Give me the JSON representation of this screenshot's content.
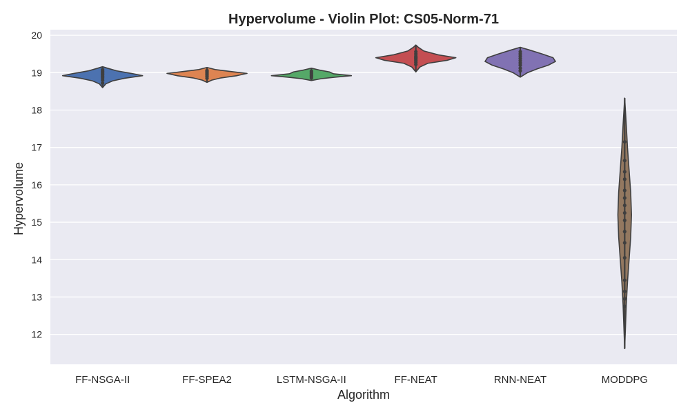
{
  "chart_data": {
    "type": "violin",
    "title": "Hypervolume - Violin Plot: CS05-Norm-71",
    "xlabel": "Algorithm",
    "ylabel": "Hypervolume",
    "ylim": [
      11.2,
      20.15
    ],
    "yticks": [
      12,
      13,
      14,
      15,
      16,
      17,
      18,
      19,
      20
    ],
    "grid": true,
    "categories": [
      "FF-NSGA-II",
      "FF-SPEA2",
      "LSTM-NSGA-II",
      "FF-NEAT",
      "RNN-NEAT",
      "MODDPG"
    ],
    "colors": [
      "#4c72b0",
      "#dd8452",
      "#55a868",
      "#c44e52",
      "#8172b3",
      "#937860"
    ],
    "background": "#eaeaf2",
    "series": [
      {
        "category": "FF-NSGA-II",
        "min": 18.6,
        "max": 19.16,
        "profile": [
          [
            18.6,
            0.0
          ],
          [
            18.7,
            0.08
          ],
          [
            18.78,
            0.25
          ],
          [
            18.85,
            0.55
          ],
          [
            18.92,
            1.0
          ],
          [
            18.98,
            0.72
          ],
          [
            19.05,
            0.35
          ],
          [
            19.12,
            0.12
          ],
          [
            19.16,
            0.0
          ]
        ],
        "points": [
          18.72,
          18.8,
          18.86,
          18.9,
          18.94,
          18.97,
          19.0,
          19.04,
          19.08
        ]
      },
      {
        "category": "FF-SPEA2",
        "min": 18.74,
        "max": 19.14,
        "profile": [
          [
            18.74,
            0.0
          ],
          [
            18.8,
            0.12
          ],
          [
            18.86,
            0.35
          ],
          [
            18.92,
            0.75
          ],
          [
            18.98,
            1.0
          ],
          [
            19.03,
            0.6
          ],
          [
            19.08,
            0.22
          ],
          [
            19.14,
            0.0
          ]
        ],
        "points": [
          18.85,
          18.9,
          18.94,
          18.97,
          19.0,
          19.03,
          19.06
        ]
      },
      {
        "category": "LSTM-NSGA-II",
        "min": 18.79,
        "max": 19.12,
        "profile": [
          [
            18.79,
            0.0
          ],
          [
            18.84,
            0.25
          ],
          [
            18.88,
            0.6
          ],
          [
            18.92,
            1.0
          ],
          [
            18.97,
            0.55
          ],
          [
            19.02,
            0.45
          ],
          [
            19.07,
            0.2
          ],
          [
            19.12,
            0.0
          ]
        ],
        "points": [
          18.86,
          18.9,
          18.93,
          18.97,
          19.0,
          19.04
        ]
      },
      {
        "category": "FF-NEAT",
        "min": 19.02,
        "max": 19.74,
        "profile": [
          [
            19.02,
            0.0
          ],
          [
            19.15,
            0.1
          ],
          [
            19.25,
            0.3
          ],
          [
            19.33,
            0.78
          ],
          [
            19.4,
            1.0
          ],
          [
            19.48,
            0.55
          ],
          [
            19.58,
            0.2
          ],
          [
            19.68,
            0.06
          ],
          [
            19.74,
            0.0
          ]
        ],
        "points": [
          19.22,
          19.28,
          19.33,
          19.37,
          19.4,
          19.44,
          19.5,
          19.56
        ]
      },
      {
        "category": "RNN-NEAT",
        "min": 18.88,
        "max": 19.68,
        "profile": [
          [
            18.88,
            0.0
          ],
          [
            19.0,
            0.18
          ],
          [
            19.1,
            0.42
          ],
          [
            19.2,
            0.7
          ],
          [
            19.3,
            0.88
          ],
          [
            19.4,
            0.82
          ],
          [
            19.5,
            0.55
          ],
          [
            19.6,
            0.25
          ],
          [
            19.68,
            0.0
          ]
        ],
        "points": [
          19.05,
          19.12,
          19.2,
          19.26,
          19.32,
          19.38,
          19.44,
          19.5,
          19.56
        ]
      },
      {
        "category": "MODDPG",
        "min": 11.62,
        "max": 18.32,
        "profile": [
          [
            11.62,
            0.0
          ],
          [
            12.2,
            0.02
          ],
          [
            12.8,
            0.04
          ],
          [
            13.4,
            0.07
          ],
          [
            14.0,
            0.11
          ],
          [
            14.6,
            0.15
          ],
          [
            15.2,
            0.17
          ],
          [
            15.8,
            0.15
          ],
          [
            16.4,
            0.11
          ],
          [
            17.0,
            0.07
          ],
          [
            17.6,
            0.04
          ],
          [
            18.32,
            0.0
          ]
        ],
        "points": [
          12.75,
          12.95,
          13.15,
          13.45,
          14.05,
          14.45,
          14.75,
          15.05,
          15.25,
          15.45,
          15.65,
          15.85,
          16.15,
          16.35,
          16.65,
          17.15
        ]
      }
    ]
  }
}
